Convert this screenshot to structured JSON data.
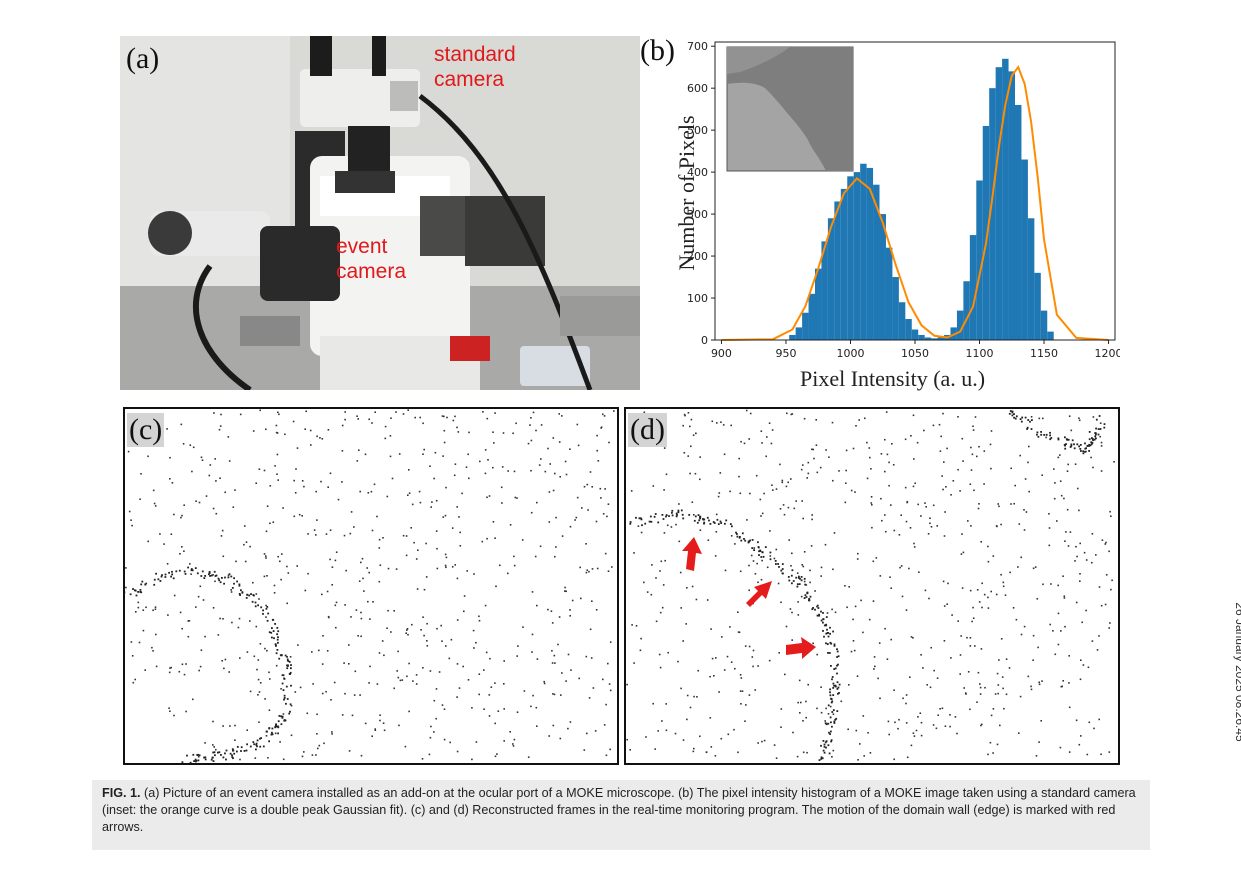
{
  "panel_a": {
    "label": "(a)",
    "standard_camera_label": [
      "standard",
      "camera"
    ],
    "event_camera_label": [
      "event",
      "camera"
    ]
  },
  "panel_b": {
    "label": "(b)"
  },
  "chart_data": {
    "type": "bar",
    "xlabel": "Pixel Intensity (a. u.)",
    "ylabel": "Number of Pixels",
    "xlim": [
      895,
      1205
    ],
    "ylim": [
      0,
      710
    ],
    "xticks": [
      900,
      950,
      1000,
      1050,
      1100,
      1150,
      1200
    ],
    "yticks": [
      0,
      100,
      200,
      300,
      400,
      500,
      600,
      700
    ],
    "grid": false,
    "series": [
      {
        "type": "histogram",
        "x": [
          955,
          960,
          965,
          970,
          975,
          980,
          985,
          990,
          995,
          1000,
          1005,
          1010,
          1015,
          1020,
          1025,
          1030,
          1035,
          1040,
          1045,
          1050,
          1055,
          1060,
          1065,
          1070,
          1075,
          1080,
          1085,
          1090,
          1095,
          1100,
          1105,
          1110,
          1115,
          1120,
          1125,
          1130,
          1135,
          1140,
          1145,
          1150,
          1155
        ],
        "values": [
          12,
          30,
          65,
          110,
          170,
          235,
          290,
          330,
          360,
          390,
          400,
          420,
          410,
          370,
          300,
          220,
          150,
          90,
          50,
          25,
          12,
          6,
          4,
          6,
          12,
          30,
          70,
          140,
          250,
          380,
          510,
          600,
          650,
          670,
          640,
          560,
          430,
          290,
          160,
          70,
          20
        ]
      },
      {
        "type": "line",
        "x": [
          900,
          940,
          955,
          965,
          975,
          985,
          995,
          1005,
          1015,
          1025,
          1035,
          1045,
          1055,
          1065,
          1075,
          1085,
          1095,
          1105,
          1110,
          1115,
          1120,
          1125,
          1130,
          1135,
          1140,
          1145,
          1150,
          1160,
          1175,
          1200
        ],
        "values": [
          0,
          2,
          25,
          80,
          170,
          270,
          350,
          385,
          360,
          280,
          180,
          90,
          35,
          10,
          6,
          20,
          80,
          230,
          340,
          460,
          560,
          630,
          650,
          610,
          520,
          390,
          240,
          60,
          5,
          0
        ]
      }
    ],
    "colors": {
      "bars": "#1f77b4",
      "fit": "#ff8c00"
    }
  },
  "panel_c": {
    "label": "(c)"
  },
  "panel_d": {
    "label": "(d)"
  },
  "caption": {
    "fig_label": "FIG. 1.",
    "text": " (a) Picture of an event camera installed as an add-on at the ocular port of a MOKE microscope. (b) The pixel intensity histogram of a MOKE image taken using a standard camera (inset: the orange curve is a double peak Gaussian fit). (c) and (d) Reconstructed frames in the real-time monitoring program. The motion of the domain wall (edge) is marked with red arrows."
  },
  "side_stamp": "26 January 2025 08:26:45"
}
